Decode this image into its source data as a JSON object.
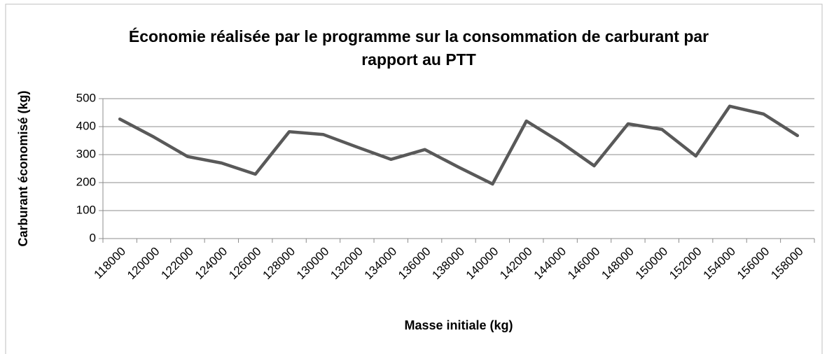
{
  "chart_data": {
    "type": "line",
    "title": "Économie réalisée par le programme sur la consommation de carburant par rapport au PTT",
    "xlabel": "Masse initiale (kg)",
    "ylabel": "Carburant économisé (kg)",
    "categories": [
      "118000",
      "120000",
      "122000",
      "124000",
      "126000",
      "128000",
      "130000",
      "132000",
      "134000",
      "136000",
      "138000",
      "140000",
      "142000",
      "144000",
      "146000",
      "148000",
      "150000",
      "152000",
      "154000",
      "156000",
      "158000"
    ],
    "series": [
      {
        "color": "#595959",
        "values": [
          427,
          363,
          293,
          270,
          230,
          382,
          372,
          327,
          283,
          318,
          255,
          195,
          420,
          345,
          260,
          410,
          390,
          295,
          473,
          445,
          368
        ]
      }
    ],
    "ylim": [
      0,
      500
    ],
    "yticks": [
      0,
      100,
      200,
      300,
      400,
      500
    ],
    "grid": true
  }
}
